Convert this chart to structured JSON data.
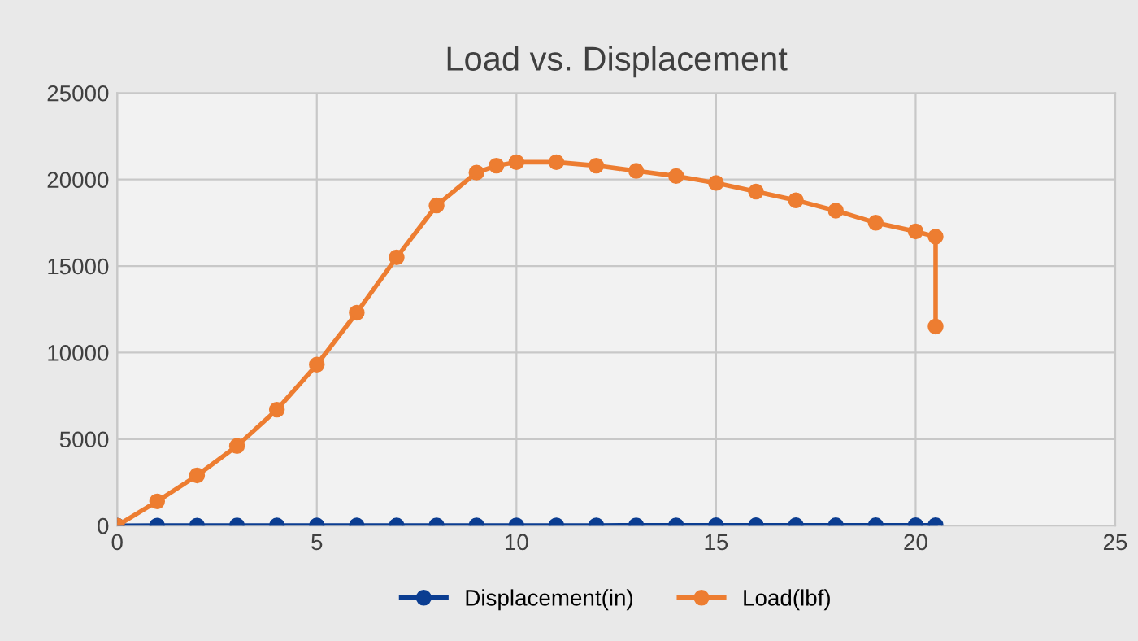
{
  "chart_data": {
    "type": "line",
    "title": "Load vs. Displacement",
    "series": [
      {
        "name": "Displacement(in)",
        "color": "#0b3d91",
        "x": [
          0,
          1,
          2,
          3,
          4,
          5,
          6,
          7,
          8,
          9,
          10,
          11,
          12,
          13,
          14,
          15,
          16,
          17,
          18,
          19,
          20,
          20.5
        ],
        "values": [
          0,
          1,
          2,
          3,
          4,
          5,
          6,
          7,
          8,
          9,
          10,
          11,
          12,
          13,
          14,
          15,
          16,
          17,
          18,
          19,
          20,
          20.5
        ]
      },
      {
        "name": "Load(lbf)",
        "color": "#ed7d31",
        "x": [
          0,
          1,
          2,
          3,
          4,
          5,
          6,
          7,
          8,
          9,
          9.5,
          10,
          11,
          12,
          13,
          14,
          15,
          16,
          17,
          18,
          19,
          20,
          20.5,
          20.5
        ],
        "values": [
          0,
          1400,
          2900,
          4600,
          6700,
          9300,
          12300,
          15500,
          18500,
          20400,
          20800,
          21000,
          21000,
          20800,
          20500,
          20200,
          19800,
          19300,
          18800,
          18200,
          17500,
          17000,
          16700,
          11500
        ]
      }
    ],
    "xlim": [
      0,
      25
    ],
    "xticks": [
      0,
      5,
      10,
      15,
      20,
      25
    ],
    "ylim": [
      0,
      25000
    ],
    "yticks": [
      0,
      5000,
      10000,
      15000,
      20000,
      25000
    ],
    "grid": true,
    "legend": "bottom",
    "marker": "circle",
    "line_style": "solid"
  }
}
